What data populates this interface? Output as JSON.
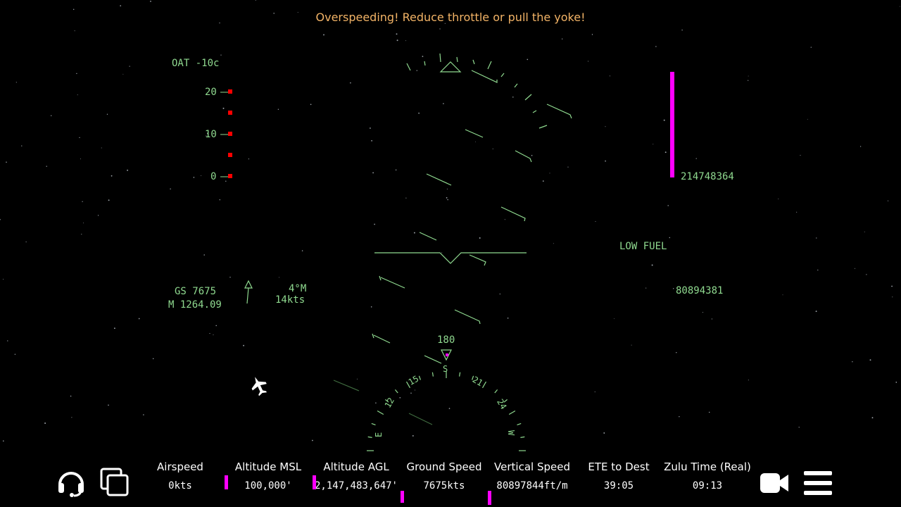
{
  "warning": "Overspeeding! Reduce throttle or pull the yoke!",
  "hud": {
    "oat": "OAT -10c",
    "alt_ladder": [
      "20",
      "10",
      "0"
    ],
    "ground_speed": "GS 7675",
    "mach": "M 1264.09",
    "wind_dir": "4°M",
    "wind_speed": "14kts",
    "right_bar_value": "214748364",
    "low_fuel": "LOW FUEL",
    "right_value_2": "80894381",
    "heading": "180",
    "compass_labels": [
      "S",
      "15",
      "21",
      "12",
      "24",
      "E",
      "W"
    ],
    "colors": {
      "hud": "#8fd98f",
      "warning": "#f2b366",
      "magenta": "#ff00ff",
      "ladder_marker": "#ff0000"
    }
  },
  "bottom_bar": {
    "left_icons": [
      "headset-icon",
      "copy-icon"
    ],
    "right_icons": [
      "camera-icon",
      "menu-icon"
    ],
    "stats": [
      {
        "label": "Airspeed",
        "value": "0kts"
      },
      {
        "label": "Altitude MSL",
        "value": "100,000'"
      },
      {
        "label": "Altitude AGL",
        "value": "2,147,483,647'"
      },
      {
        "label": "Ground Speed",
        "value": "7675kts"
      },
      {
        "label": "Vertical Speed",
        "value": "80897844ft/m"
      },
      {
        "label": "ETE to Dest",
        "value": "39:05"
      },
      {
        "label": "Zulu Time (Real)",
        "value": "09:13"
      }
    ]
  }
}
